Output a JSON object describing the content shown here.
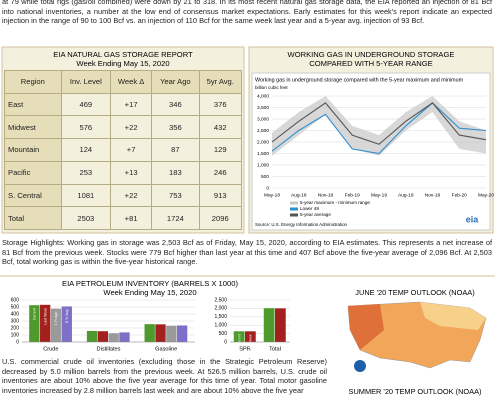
{
  "intro": "at 79 while total rigs (gas/oil combined) were down by 21 to 318. In its most recent natural gas storage data, the EIA reported an injection of 81 Bcf into national inventories, a number at the low end of consensus market expectations. Early estimates for this week's report indicate an expected injection in the range of 90 to 100 Bcf vs. an injection of 110 Bcf for the same week last year and a 5-year avg. injection of 93 Bcf.",
  "gas_table": {
    "title": "EIA NATURAL GAS STORAGE REPORT",
    "subtitle": "Week Ending May 15, 2020",
    "columns": [
      "Region",
      "Inv. Level",
      "Week Δ",
      "Year Ago",
      "5yr Avg."
    ],
    "rows": [
      [
        "East",
        "469",
        "+17",
        "346",
        "376"
      ],
      [
        "Midwest",
        "576",
        "+22",
        "356",
        "432"
      ],
      [
        "Mountain",
        "124",
        "+7",
        "87",
        "129"
      ],
      [
        "Pacific",
        "253",
        "+13",
        "183",
        "246"
      ],
      [
        "S. Central",
        "1081",
        "+22",
        "753",
        "913"
      ],
      [
        "Total",
        "2503",
        "+81",
        "1724",
        "2096"
      ]
    ]
  },
  "storage_highlights": "Storage Highlights: Working gas in storage was 2,503 Bcf as of Friday, May 15, 2020, according to EIA estimates. This represents a net increase of 81 Bcf from the previous week. Stocks were 779 Bcf higher than last year at this time and 407 Bcf above the five-year average of 2,096 Bcf. At 2,503 Bcf, total working gas is within the five-year historical range.",
  "petroleum_text": "U.S. commercial crude oil inventories (excluding those in the Strategic Petroleum Reserve) decreased by 5.0 million barrels from the previous week. At 526.5 million barrels, U.S. crude oil inventories are about 10% above the five year average for this time of year. Total motor gasoline inventories increased by 2.8 million barrels last week and are about 10% above the five year",
  "maps": {
    "june_title": "JUNE '20 TEMP OUTLOOK (NOAA)",
    "summer_title": "SUMMER '20 TEMP OUTLOOK (NOAA)"
  },
  "chart_data": [
    {
      "type": "line",
      "title": "WORKING GAS IN UNDERGROUND STORAGE",
      "subtitle": "COMPARED WITH 5-YEAR RANGE",
      "inner_title": "Working gas in underground storage compared with the 5-year maximum and minimum",
      "y_label": "billion cubic feet",
      "source": "Source: U.S. Energy Information Administration",
      "logo": "eia",
      "categories": [
        "May-18",
        "Aug-18",
        "Nov-18",
        "Feb-19",
        "May-19",
        "Aug-19",
        "Nov-19",
        "Feb-20",
        "May-20"
      ],
      "ylim": [
        0,
        4000
      ],
      "yticks": [
        0,
        500,
        {
          "value": 1000,
          "label": "1,000"
        },
        {
          "value": 1500,
          "label": "1,500"
        },
        {
          "value": 2000,
          "label": "2,000"
        },
        {
          "value": 2500,
          "label": "2,500"
        },
        {
          "value": 3000,
          "label": "3,000"
        },
        {
          "value": 3500,
          "label": "3,500"
        },
        {
          "value": 4000,
          "label": "4,000"
        }
      ],
      "grid": true,
      "series": [
        {
          "name": "5-year maximum - minimum range",
          "color": "#c8c8c8",
          "min": [
            1400,
            2300,
            3200,
            1700,
            1400,
            2500,
            3300,
            1700,
            1500
          ],
          "max": [
            2400,
            3300,
            4000,
            2700,
            2300,
            3300,
            4000,
            2900,
            2500
          ]
        },
        {
          "name": "Lower 48",
          "color": "#2e8fd0",
          "values": [
            1600,
            2500,
            3200,
            1700,
            1500,
            2700,
            3700,
            2600,
            2500
          ]
        },
        {
          "name": "5-year average",
          "color": "#555555",
          "values": [
            2000,
            2900,
            3700,
            2300,
            1900,
            2900,
            3700,
            2300,
            2100
          ]
        }
      ]
    },
    {
      "type": "bar",
      "title": "EIA PETROLEUM INVENTORY (BARRELS X 1000)",
      "subtitle": "Week Ending May 15, 2020",
      "categories": [
        "Crude",
        "Distillates",
        "Gasoline"
      ],
      "ylim": [
        0,
        600
      ],
      "yticks": [
        0,
        100,
        200,
        300,
        400,
        500,
        600
      ],
      "grid": true,
      "series": [
        {
          "name": "Current",
          "color": "#4e9a2c",
          "values": [
            526,
            158,
            255
          ]
        },
        {
          "name": "Last Week",
          "color": "#a3201f",
          "values": [
            531,
            154,
            252
          ]
        },
        {
          "name": "1 Yr Ago",
          "color": "#9a9a9a",
          "values": [
            477,
            126,
            233
          ]
        },
        {
          "name": "5 Yr Avg",
          "color": "#7c70c8",
          "values": [
            508,
            137,
            236
          ]
        }
      ]
    },
    {
      "type": "bar",
      "categories": [
        "SPR",
        "Total"
      ],
      "ylim": [
        0,
        2500
      ],
      "yticks": [
        0,
        500,
        {
          "value": 1000,
          "label": "1,000"
        },
        {
          "value": 1500,
          "label": "1,500"
        },
        {
          "value": 2000,
          "label": "2,000"
        },
        {
          "value": 2500,
          "label": "2,500"
        }
      ],
      "grid": true,
      "series": [
        {
          "name": "Current",
          "color": "#4e9a2c",
          "values": [
            637,
            2010
          ]
        },
        {
          "name": "Last Week",
          "color": "#a3201f",
          "values": [
            636,
            2000
          ]
        }
      ]
    }
  ]
}
